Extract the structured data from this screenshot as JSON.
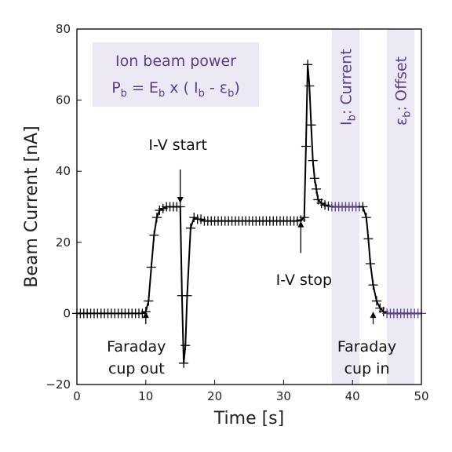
{
  "chart_data": {
    "type": "line",
    "xlabel": "Time [s]",
    "ylabel": "Beam Current [nA]",
    "xlim": [
      0,
      50
    ],
    "ylim": [
      -20,
      80
    ],
    "xticks": [
      0,
      10,
      20,
      30,
      40,
      50
    ],
    "yticks": [
      -20,
      0,
      20,
      40,
      60,
      80
    ],
    "grid": false,
    "line_color": "#000000",
    "highlight_color": "#5a3d8c",
    "band_color": "#ece9f5",
    "marker": "plus",
    "shaded_bands": [
      {
        "x_from": 37,
        "x_to": 41,
        "label_main": "I",
        "label_sub": "b",
        "label_rest": ": Current"
      },
      {
        "x_from": 45,
        "x_to": 49,
        "label_main": "ε",
        "label_sub": "b",
        "label_rest": ": Offset"
      }
    ],
    "series": [
      {
        "x": [
          0,
          0.5,
          1,
          1.5,
          2,
          2.5,
          3,
          3.5,
          4,
          4.5,
          5,
          5.5,
          6,
          6.5,
          7,
          7.5,
          8,
          8.5,
          9,
          9.5,
          10,
          10.4,
          10.8,
          11.2,
          11.6,
          12,
          12.5,
          13,
          13.5,
          14,
          14.5,
          15,
          15.25,
          15.5,
          15.75,
          16,
          16.5,
          17,
          17.5,
          18,
          18.5,
          19,
          19.5,
          20,
          20.5,
          21,
          21.5,
          22,
          22.5,
          23,
          23.5,
          24,
          24.5,
          25,
          25.5,
          26,
          26.5,
          27,
          27.5,
          28,
          28.5,
          29,
          29.5,
          30,
          30.5,
          31,
          31.5,
          32,
          32.5,
          33,
          33.25,
          33.5,
          33.75,
          34,
          34.25,
          34.5,
          34.75,
          35,
          35.5,
          36,
          36.5,
          37,
          37.5,
          38,
          38.5,
          39,
          39.5,
          40,
          40.5,
          41,
          41.5,
          42,
          42.3,
          42.6,
          43,
          43.5,
          44,
          44.5,
          45,
          45.5,
          46,
          46.5,
          47,
          47.5,
          48,
          48.5,
          49,
          49.5,
          50
        ],
        "y": [
          0,
          0,
          0,
          0,
          0,
          0,
          0,
          0,
          0,
          0,
          0,
          0,
          0,
          0,
          0,
          0,
          0,
          0,
          0,
          0,
          0.5,
          3.5,
          13,
          22,
          27,
          29,
          29.5,
          30,
          30,
          30,
          30,
          30,
          5,
          -14,
          -9,
          5,
          24,
          27,
          26.5,
          26.5,
          26,
          26,
          26,
          26,
          26,
          26,
          26,
          26,
          26,
          26,
          26,
          26,
          26,
          26,
          26,
          26,
          26,
          26,
          26,
          26,
          26,
          26,
          26,
          26,
          26,
          26,
          26,
          26,
          26.3,
          27,
          47,
          70,
          64,
          53,
          43,
          38,
          35,
          32,
          31,
          30.5,
          30.2,
          30,
          30,
          30,
          30,
          30,
          30,
          30,
          30,
          30,
          30,
          27,
          21,
          14,
          8,
          3.5,
          1.5,
          0.5,
          0,
          0,
          0,
          0,
          0,
          0,
          0,
          0,
          0,
          0,
          0
        ],
        "highlight_ranges": [
          [
            37,
            41
          ],
          [
            45,
            50
          ]
        ]
      }
    ],
    "annotations": {
      "formula_box": {
        "title": "Ion beam power",
        "formula_left": "P",
        "formula_left_sub": "b",
        "formula_mid": " = E",
        "formula_mid_sub": "b",
        "formula_right1": " x ( I",
        "formula_right1_sub": "b",
        "formula_right2": " - ε",
        "formula_right2_sub": "b",
        "formula_end": ")"
      },
      "iv_start": {
        "text": "I-V start",
        "arrow_x": 15,
        "arrow_y_from": 40.5,
        "arrow_y_to": 31
      },
      "iv_stop": {
        "text": "I-V stop",
        "arrow_x": 32.5,
        "arrow_y_from": 17,
        "arrow_y_to": 26
      },
      "faraday_out": {
        "line1": "Faraday",
        "line2": "cup out",
        "arrow_x": 10,
        "arrow_y_from": -3,
        "arrow_y_to": 0.5
      },
      "faraday_in": {
        "line1": "Faraday",
        "line2": "cup in",
        "arrow_x": 43,
        "arrow_y_from": -3,
        "arrow_y_to": 0.5
      }
    }
  }
}
